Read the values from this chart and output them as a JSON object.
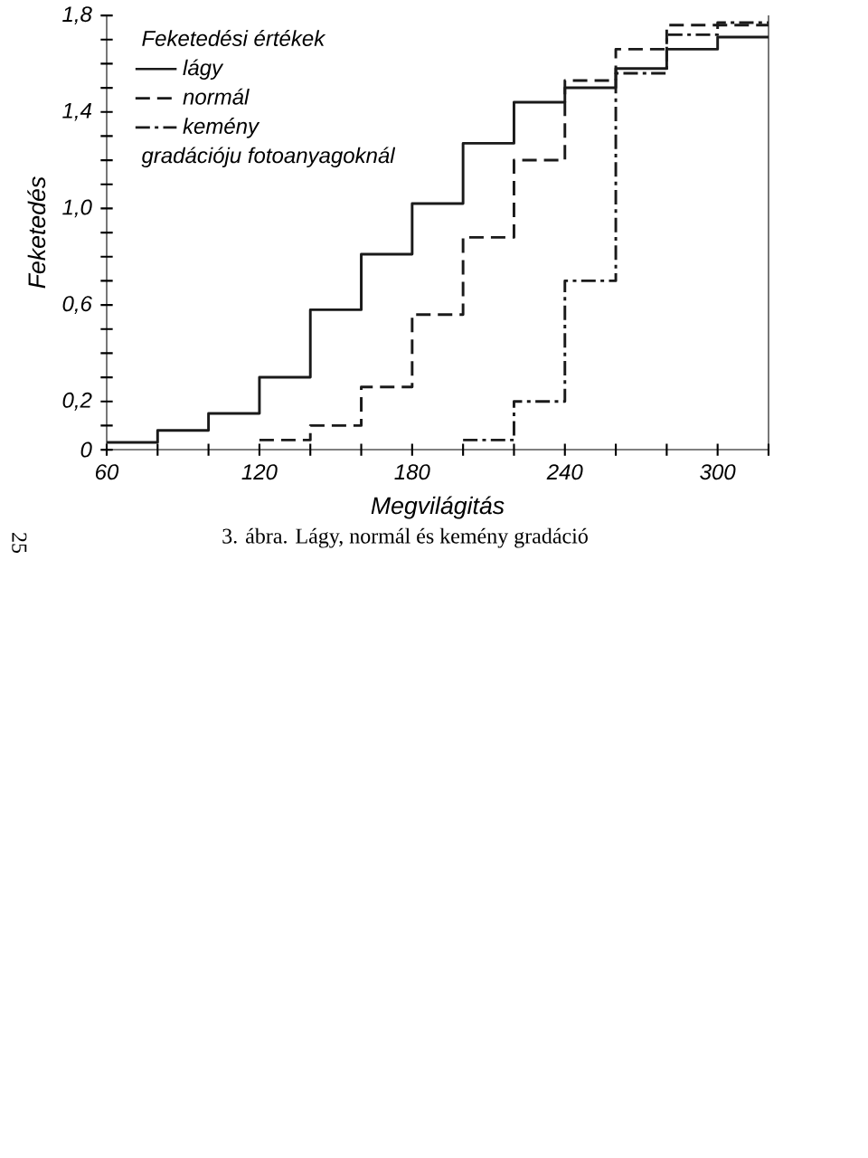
{
  "chart_data": {
    "type": "step",
    "xlabel": "Megvilágitás",
    "ylabel": "Feketedés",
    "legend_title": "Feketedési értékek",
    "annotations": [
      "gradációju fotoanyagoknál",
      "3. ábra. Lágy, normál és kemény gradáció",
      "25"
    ],
    "series": [
      {
        "name": "lágy",
        "color": "#1a1a1a",
        "line_style": "solid",
        "x": [
          60,
          80,
          100,
          120,
          140,
          160,
          180,
          200,
          220,
          240,
          260,
          280,
          300,
          320
        ],
        "values": [
          0.03,
          0.08,
          0.15,
          0.3,
          0.58,
          0.81,
          1.02,
          1.27,
          1.44,
          1.5,
          1.58,
          1.66,
          1.71,
          1.71
        ]
      },
      {
        "name": "normál",
        "color": "#1a1a1a",
        "line_style": "dashed",
        "x": [
          120,
          140,
          160,
          180,
          200,
          220,
          240,
          260,
          280,
          300,
          320
        ],
        "values": [
          0.04,
          0.1,
          0.26,
          0.56,
          0.88,
          1.2,
          1.53,
          1.66,
          1.76,
          1.76,
          1.76
        ]
      },
      {
        "name": "kemény",
        "color": "#1a1a1a",
        "line_style": "dashdot",
        "x": [
          200,
          220,
          240,
          260,
          280,
          300,
          320
        ],
        "values": [
          0.04,
          0.2,
          0.7,
          1.56,
          1.72,
          1.77,
          1.77
        ]
      }
    ],
    "xlim": [
      60,
      320
    ],
    "ylim": [
      0,
      1.8
    ],
    "xticks": [
      60,
      {
        "value": 80,
        "label": null
      },
      {
        "value": 100,
        "label": null
      },
      120,
      {
        "value": 140,
        "label": null
      },
      {
        "value": 160,
        "label": null
      },
      180,
      {
        "value": 200,
        "label": null
      },
      {
        "value": 220,
        "label": null
      },
      240,
      {
        "value": 260,
        "label": null
      },
      {
        "value": 280,
        "label": null
      },
      300,
      {
        "value": 320,
        "label": null
      }
    ],
    "yticks": [
      0,
      {
        "value": 0.1,
        "label": null
      },
      {
        "value": 0.2,
        "label": "0,2"
      },
      {
        "value": 0.3,
        "label": null
      },
      {
        "value": 0.4,
        "label": null
      },
      {
        "value": 0.5,
        "label": null
      },
      {
        "value": 0.6,
        "label": "0,6"
      },
      {
        "value": 0.7,
        "label": null
      },
      {
        "value": 0.8,
        "label": null
      },
      {
        "value": 0.9,
        "label": null
      },
      {
        "value": 1.0,
        "label": "1,0"
      },
      {
        "value": 1.1,
        "label": null
      },
      {
        "value": 1.2,
        "label": null
      },
      {
        "value": 1.3,
        "label": null
      },
      {
        "value": 1.4,
        "label": "1,4"
      },
      {
        "value": 1.5,
        "label": null
      },
      {
        "value": 1.6,
        "label": null
      },
      {
        "value": 1.7,
        "label": null
      },
      {
        "value": 1.8,
        "label": "1,8"
      }
    ],
    "legend": "top left"
  }
}
